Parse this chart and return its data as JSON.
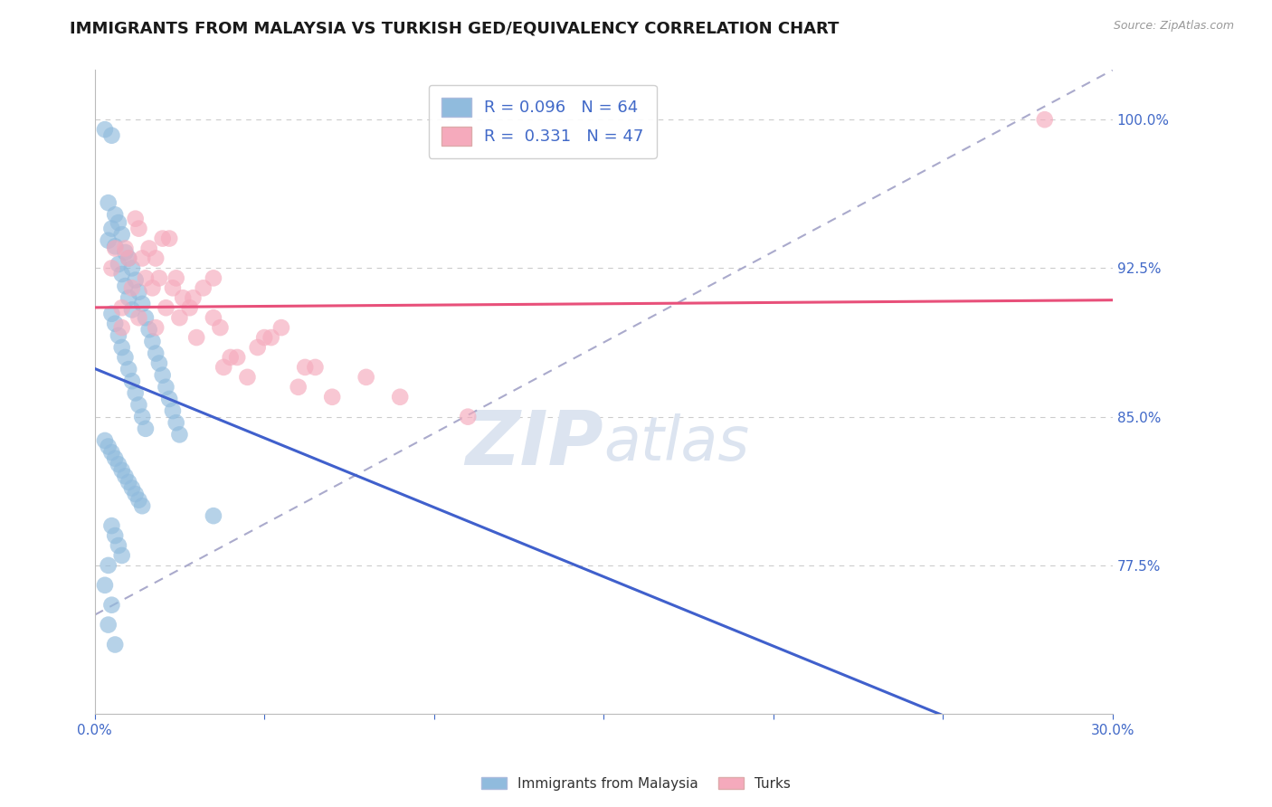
{
  "title": "IMMIGRANTS FROM MALAYSIA VS TURKISH GED/EQUIVALENCY CORRELATION CHART",
  "source": "Source: ZipAtlas.com",
  "ylabel_ticks": [
    77.5,
    85.0,
    92.5,
    100.0
  ],
  "ylabel_tick_labels": [
    "77.5%",
    "85.0%",
    "92.5%",
    "100.0%"
  ],
  "xmin": 0.0,
  "xmax": 30.0,
  "ymin": 70.0,
  "ymax": 102.5,
  "blue_R": 0.096,
  "blue_N": 64,
  "pink_R": 0.331,
  "pink_N": 47,
  "legend_label_blue": "Immigrants from Malaysia",
  "legend_label_pink": "Turks",
  "blue_color": "#90bbdd",
  "pink_color": "#f5aabc",
  "blue_line_color": "#4060cc",
  "pink_line_color": "#e8507a",
  "blue_scatter_x": [
    0.3,
    0.5,
    0.4,
    0.6,
    0.7,
    0.5,
    0.8,
    0.4,
    0.6,
    0.9,
    1.0,
    0.7,
    1.1,
    0.8,
    1.2,
    0.9,
    1.3,
    1.0,
    1.4,
    1.1,
    0.5,
    1.5,
    0.6,
    1.6,
    0.7,
    1.7,
    0.8,
    1.8,
    0.9,
    1.9,
    1.0,
    2.0,
    1.1,
    2.1,
    1.2,
    2.2,
    1.3,
    2.3,
    1.4,
    2.4,
    1.5,
    2.5,
    0.3,
    0.4,
    0.5,
    0.6,
    0.7,
    0.8,
    0.9,
    1.0,
    1.1,
    1.2,
    1.3,
    1.4,
    3.5,
    0.5,
    0.6,
    0.7,
    0.8,
    0.4,
    0.3,
    0.5,
    0.4,
    0.6
  ],
  "blue_scatter_y": [
    99.5,
    99.2,
    95.8,
    95.2,
    94.8,
    94.5,
    94.2,
    93.9,
    93.6,
    93.3,
    93.0,
    92.7,
    92.5,
    92.2,
    91.9,
    91.6,
    91.3,
    91.0,
    90.7,
    90.4,
    90.2,
    90.0,
    89.7,
    89.4,
    89.1,
    88.8,
    88.5,
    88.2,
    88.0,
    87.7,
    87.4,
    87.1,
    86.8,
    86.5,
    86.2,
    85.9,
    85.6,
    85.3,
    85.0,
    84.7,
    84.4,
    84.1,
    83.8,
    83.5,
    83.2,
    82.9,
    82.6,
    82.3,
    82.0,
    81.7,
    81.4,
    81.1,
    80.8,
    80.5,
    80.0,
    79.5,
    79.0,
    78.5,
    78.0,
    77.5,
    76.5,
    75.5,
    74.5,
    73.5
  ],
  "pink_scatter_x": [
    0.5,
    0.8,
    1.2,
    0.6,
    1.8,
    1.0,
    2.5,
    1.5,
    3.0,
    2.0,
    1.3,
    4.0,
    0.8,
    2.8,
    1.6,
    3.5,
    4.5,
    1.1,
    5.0,
    2.2,
    1.4,
    3.8,
    0.9,
    5.5,
    2.6,
    1.7,
    6.0,
    2.4,
    7.0,
    1.3,
    3.2,
    6.5,
    2.1,
    4.8,
    1.8,
    8.0,
    2.9,
    3.5,
    9.0,
    4.2,
    5.2,
    2.3,
    11.0,
    3.7,
    6.2,
    1.9,
    28.0
  ],
  "pink_scatter_y": [
    92.5,
    90.5,
    95.0,
    93.5,
    89.5,
    93.0,
    90.0,
    92.0,
    89.0,
    94.0,
    94.5,
    88.0,
    89.5,
    90.5,
    93.5,
    92.0,
    87.0,
    91.5,
    89.0,
    94.0,
    93.0,
    87.5,
    93.5,
    89.5,
    91.0,
    91.5,
    86.5,
    92.0,
    86.0,
    90.0,
    91.5,
    87.5,
    90.5,
    88.5,
    93.0,
    87.0,
    91.0,
    90.0,
    86.0,
    88.0,
    89.0,
    91.5,
    85.0,
    89.5,
    87.5,
    92.0,
    100.0
  ],
  "grid_color": "#cccccc",
  "title_fontsize": 13,
  "axis_label_color": "#4169c8",
  "watermark_color": "#dce4f0",
  "watermark_fontsize": 60
}
